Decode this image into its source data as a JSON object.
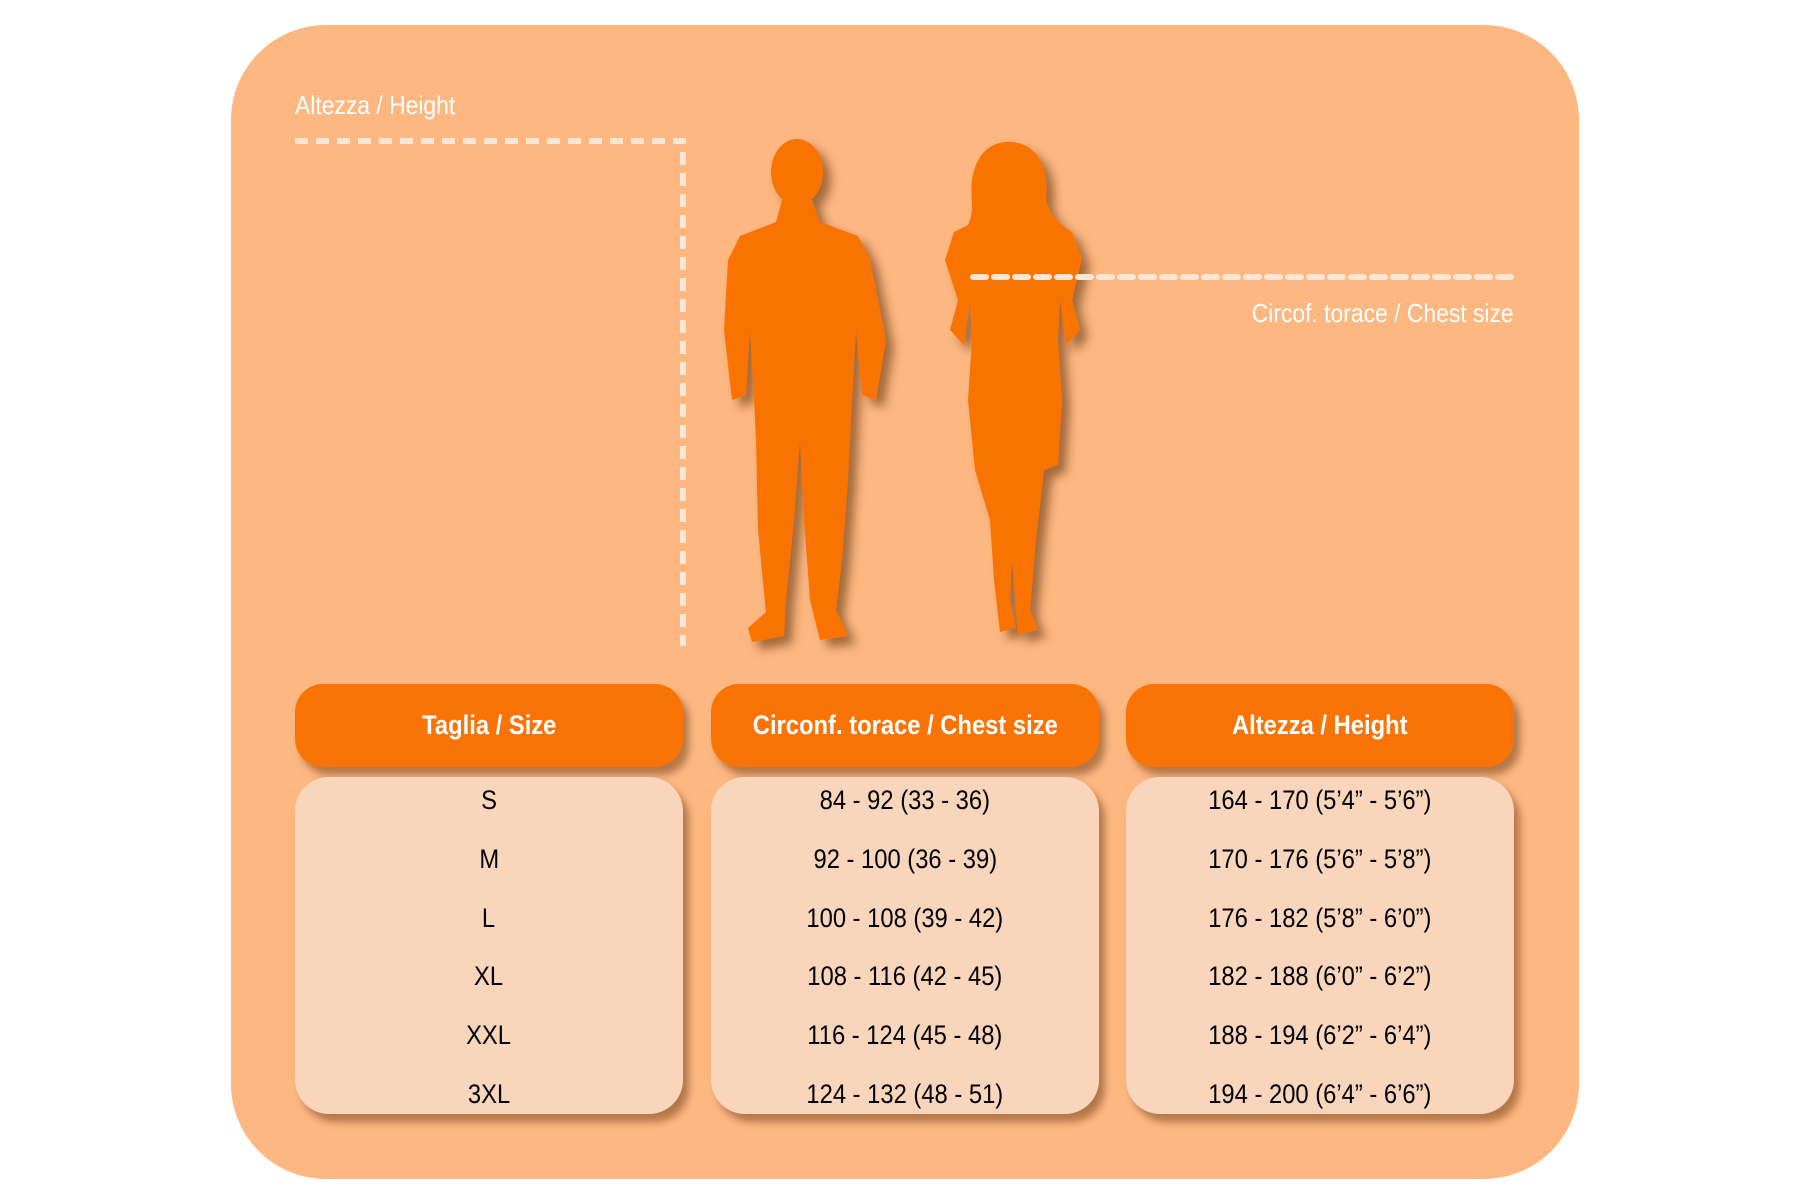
{
  "labels": {
    "height": "Altezza / Height",
    "chest": "Circof. torace / Chest size"
  },
  "table": {
    "headers": [
      "Taglia / Size",
      "Circonf. torace / Chest size",
      "Altezza / Height"
    ],
    "rows": [
      [
        "S",
        "84 - 92 (33 - 36)",
        "164 - 170 (5’4” - 5’6”)"
      ],
      [
        "M",
        "92 - 100 (36 - 39)",
        "170 - 176 (5’6” - 5’8”)"
      ],
      [
        "L",
        "100 - 108 (39 - 42)",
        "176 - 182 (5’8” - 6’0”)"
      ],
      [
        "XL",
        "108 - 116 (42 - 45)",
        "182 - 188 (6’0” - 6’2”)"
      ],
      [
        "XXL",
        "116 - 124 (45 - 48)",
        "188 - 194 (6’2” - 6’4”)"
      ],
      [
        "3XL",
        "124 - 132 (48 - 51)",
        "194 - 200 (6’4” - 6’6”)"
      ]
    ]
  }
}
